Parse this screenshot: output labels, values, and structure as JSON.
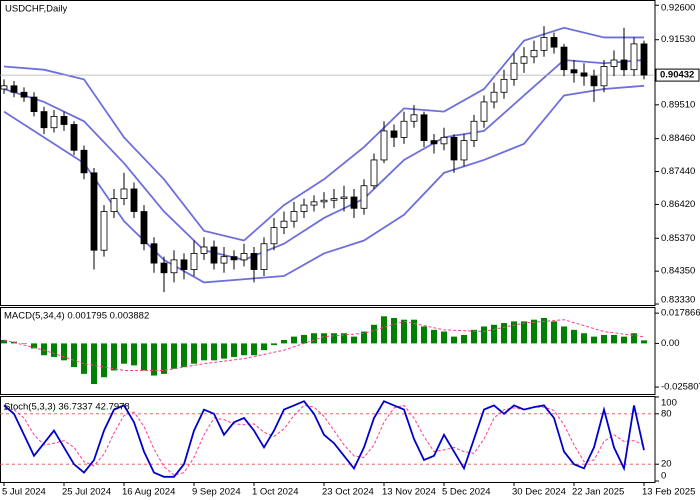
{
  "chart_data": [
    {
      "type": "candlestick",
      "title": "USDCHF,Daily",
      "categories": [
        "5 Jul 2024",
        null,
        null,
        null,
        null,
        null,
        "25 Jul 2024",
        null,
        null,
        null,
        null,
        null,
        "16 Aug 2024",
        null,
        null,
        null,
        null,
        null,
        null,
        "9 Sep 2024",
        null,
        null,
        null,
        null,
        null,
        "1 Oct 2024",
        null,
        null,
        null,
        null,
        null,
        null,
        "23 Oct 2024",
        null,
        null,
        null,
        null,
        null,
        "13 Nov 2024",
        null,
        null,
        null,
        null,
        null,
        "5 Dec 2024",
        null,
        null,
        null,
        null,
        null,
        null,
        "30 Dec 2024",
        null,
        null,
        null,
        null,
        null,
        "22 Jan 2025",
        null,
        null,
        null,
        null,
        null,
        null,
        "13 Feb 2025"
      ],
      "open": [
        0.9,
        0.901,
        0.899,
        0.8975,
        0.893,
        0.888,
        0.8915,
        0.889,
        0.881,
        0.874,
        0.85,
        0.862,
        0.866,
        0.869,
        0.862,
        0.852,
        0.846,
        0.843,
        0.847,
        0.844,
        0.849,
        0.851,
        0.846,
        0.848,
        0.847,
        0.849,
        0.844,
        0.852,
        0.857,
        0.859,
        0.862,
        0.864,
        0.865,
        0.8655,
        0.866,
        0.8665,
        0.863,
        0.87,
        0.878,
        0.887,
        0.885,
        0.89,
        0.892,
        0.884,
        0.883,
        0.885,
        0.878,
        0.884,
        0.89,
        0.896,
        0.899,
        0.903,
        0.908,
        0.91,
        0.912,
        0.916,
        0.913,
        0.906,
        0.905,
        0.904,
        0.901,
        0.907,
        0.909,
        0.906,
        0.914
      ],
      "high": [
        0.903,
        0.9025,
        0.9005,
        0.899,
        0.8945,
        0.8935,
        0.893,
        0.89,
        0.8825,
        0.8755,
        0.864,
        0.869,
        0.874,
        0.871,
        0.864,
        0.854,
        0.848,
        0.85,
        0.849,
        0.853,
        0.854,
        0.853,
        0.851,
        0.85,
        0.852,
        0.851,
        0.854,
        0.86,
        0.862,
        0.865,
        0.866,
        0.867,
        0.868,
        0.869,
        0.87,
        0.869,
        0.872,
        0.88,
        0.89,
        0.889,
        0.893,
        0.895,
        0.893,
        0.886,
        0.888,
        0.886,
        0.886,
        0.892,
        0.898,
        0.902,
        0.906,
        0.911,
        0.913,
        0.915,
        0.9195,
        0.9175,
        0.914,
        0.909,
        0.908,
        0.906,
        0.909,
        0.912,
        0.919,
        0.916,
        0.915
      ],
      "low": [
        0.8985,
        0.8975,
        0.896,
        0.8915,
        0.886,
        0.8865,
        0.887,
        0.8795,
        0.872,
        0.844,
        0.848,
        0.86,
        0.864,
        0.86,
        0.85,
        0.843,
        0.837,
        0.84,
        0.841,
        0.842,
        0.847,
        0.844,
        0.843,
        0.844,
        0.845,
        0.84,
        0.842,
        0.85,
        0.855,
        0.857,
        0.86,
        0.862,
        0.863,
        0.863,
        0.862,
        0.86,
        0.861,
        0.869,
        0.877,
        0.882,
        0.883,
        0.888,
        0.882,
        0.88,
        0.881,
        0.874,
        0.876,
        0.882,
        0.888,
        0.894,
        0.897,
        0.901,
        0.905,
        0.908,
        0.91,
        0.911,
        0.904,
        0.902,
        0.901,
        0.896,
        0.899,
        0.904,
        0.904,
        0.904,
        0.903
      ],
      "close": [
        0.901,
        0.899,
        0.8975,
        0.893,
        0.888,
        0.8915,
        0.889,
        0.881,
        0.874,
        0.85,
        0.862,
        0.866,
        0.869,
        0.862,
        0.852,
        0.846,
        0.843,
        0.847,
        0.844,
        0.849,
        0.851,
        0.846,
        0.848,
        0.847,
        0.849,
        0.844,
        0.852,
        0.857,
        0.859,
        0.862,
        0.864,
        0.865,
        0.8655,
        0.866,
        0.8665,
        0.863,
        0.87,
        0.878,
        0.887,
        0.885,
        0.89,
        0.892,
        0.884,
        0.883,
        0.885,
        0.878,
        0.884,
        0.89,
        0.896,
        0.899,
        0.903,
        0.908,
        0.91,
        0.912,
        0.916,
        0.913,
        0.906,
        0.905,
        0.904,
        0.901,
        0.907,
        0.909,
        0.906,
        0.914,
        0.90432
      ],
      "bands": {
        "color": "#6f6fdc",
        "x": [
          0,
          4,
          8,
          12,
          16,
          20,
          24,
          28,
          32,
          36,
          40,
          44,
          48,
          52,
          56,
          60,
          64
        ],
        "upper": [
          0.907,
          0.906,
          0.903,
          0.885,
          0.872,
          0.856,
          0.853,
          0.864,
          0.872,
          0.882,
          0.894,
          0.893,
          0.9,
          0.915,
          0.919,
          0.916,
          0.916
        ],
        "middle": [
          0.9,
          0.896,
          0.89,
          0.877,
          0.862,
          0.85,
          0.847,
          0.852,
          0.86,
          0.866,
          0.878,
          0.885,
          0.887,
          0.898,
          0.909,
          0.908,
          0.909
        ],
        "lower": [
          0.893,
          0.885,
          0.877,
          0.859,
          0.847,
          0.84,
          0.841,
          0.842,
          0.849,
          0.853,
          0.861,
          0.874,
          0.878,
          0.883,
          0.898,
          0.9,
          0.901
        ]
      },
      "current_price": 0.90432,
      "ylim": [
        0.833,
        0.927
      ],
      "yticks": [
        {
          "value": 0.926,
          "label": "0.92600"
        },
        {
          "value": 0.9153,
          "label": "0.91530"
        },
        {
          "value": 0.8951,
          "label": "0.89510"
        },
        {
          "value": 0.8846,
          "label": "0.88460"
        },
        {
          "value": 0.8744,
          "label": "0.87440"
        },
        {
          "value": 0.8642,
          "label": "0.86420"
        },
        {
          "value": 0.8537,
          "label": "0.85370"
        },
        {
          "value": 0.8435,
          "label": "0.84350"
        },
        {
          "value": 0.8333,
          "label": "0.83330"
        }
      ]
    },
    {
      "type": "macd",
      "title": "MACD(5,34,4) 0.001795 0.003882",
      "values": [
        0.002,
        0.001,
        0.0,
        -0.003,
        -0.007,
        -0.008,
        -0.01,
        -0.014,
        -0.018,
        -0.024,
        -0.02,
        -0.016,
        -0.012,
        -0.013,
        -0.016,
        -0.019,
        -0.018,
        -0.015,
        -0.014,
        -0.012,
        -0.01,
        -0.01,
        -0.009,
        -0.008,
        -0.007,
        -0.007,
        -0.004,
        -0.001,
        0.002,
        0.004,
        0.005,
        0.006,
        0.006,
        0.006,
        0.006,
        0.004,
        0.007,
        0.011,
        0.016,
        0.015,
        0.014,
        0.014,
        0.01,
        0.008,
        0.007,
        0.004,
        0.005,
        0.008,
        0.01,
        0.011,
        0.012,
        0.013,
        0.013,
        0.014,
        0.015,
        0.013,
        0.01,
        0.008,
        0.006,
        0.004,
        0.005,
        0.005,
        0.004,
        0.006,
        0.001795
      ],
      "color": "#008000",
      "signal": {
        "color": "#ff3c8c",
        "x": [
          0,
          4,
          8,
          12,
          16,
          20,
          24,
          28,
          32,
          36,
          40,
          44,
          48,
          52,
          56,
          60,
          64
        ],
        "values": [
          0.002,
          -0.004,
          -0.012,
          -0.016,
          -0.016,
          -0.012,
          -0.009,
          -0.004,
          0.004,
          0.006,
          0.013,
          0.008,
          0.007,
          0.012,
          0.014,
          0.007,
          0.003882
        ]
      },
      "ylim": [
        -0.0299,
        0.0215
      ],
      "yticks": [
        0.017866,
        {
          "value": 0,
          "label": "0.00"
        },
        -0.025807
      ]
    },
    {
      "type": "stochastic",
      "title": "Stoch(5,3,3) 36.7337 42.7978",
      "values": [
        90,
        80,
        55,
        30,
        45,
        60,
        40,
        20,
        10,
        25,
        60,
        85,
        90,
        70,
        35,
        10,
        5,
        5,
        20,
        60,
        85,
        80,
        55,
        70,
        75,
        60,
        40,
        60,
        85,
        90,
        95,
        80,
        55,
        45,
        30,
        15,
        40,
        75,
        95,
        90,
        85,
        50,
        25,
        30,
        55,
        35,
        15,
        50,
        85,
        90,
        80,
        90,
        85,
        88,
        90,
        75,
        35,
        20,
        15,
        40,
        85,
        40,
        15,
        90,
        36.7337
      ],
      "color": "#0000cc",
      "signal": {
        "color": "#ff3c8c",
        "values": [
          85,
          85,
          75,
          55,
          43,
          45,
          48,
          40,
          23,
          18,
          32,
          57,
          78,
          82,
          65,
          38,
          17,
          7,
          10,
          28,
          55,
          75,
          73,
          68,
          67,
          68,
          58,
          53,
          62,
          78,
          90,
          88,
          77,
          60,
          43,
          30,
          28,
          43,
          70,
          87,
          90,
          75,
          53,
          35,
          37,
          40,
          35,
          33,
          50,
          75,
          85,
          87,
          85,
          88,
          88,
          84,
          67,
          43,
          23,
          25,
          47,
          55,
          47,
          48,
          42.7978
        ]
      },
      "levels": [
        80,
        20
      ],
      "level_color": "#e05050",
      "ylim": [
        0,
        100
      ],
      "yticks": [
        100,
        80,
        20,
        0
      ]
    }
  ]
}
